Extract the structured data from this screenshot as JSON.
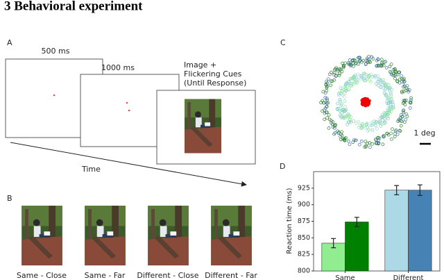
{
  "heading": "3   Behavioral experiment",
  "panel_a": {
    "label": "A",
    "screens": [
      {
        "caption": "500 ms"
      },
      {
        "caption": "1000 ms"
      },
      {
        "caption_lines": [
          "Image +",
          "Flickering Cues",
          "(Until Response)"
        ]
      }
    ],
    "axis_label": "Time"
  },
  "panel_b": {
    "label": "B",
    "conditions": [
      {
        "caption": "Same - Close",
        "color": "#90e890"
      },
      {
        "caption": "Same - Far",
        "color": "#2e8b2e"
      },
      {
        "caption": "Different - Close",
        "color": "#a8d8ea"
      },
      {
        "caption": "Different - Far",
        "color": "#4a86c0"
      }
    ]
  },
  "panel_c": {
    "label": "C",
    "scale_label": "1 deg"
  },
  "panel_d": {
    "label": "D",
    "chart": {
      "type": "bar",
      "y_label": "Reaction time (ms)",
      "categories": [
        "Same",
        "Different"
      ],
      "series": [
        {
          "color": "#90ee90",
          "values": [
            842,
            922
          ],
          "errors": [
            7,
            7
          ]
        },
        {
          "color": "#008000",
          "values": [
            874,
            922
          ],
          "errors": [
            7,
            8
          ]
        }
      ],
      "series_colors_different": [
        "#add8e6",
        "#4682b4"
      ],
      "ylim": [
        800,
        950
      ],
      "yticks": [
        800,
        825,
        850,
        875,
        900,
        925
      ]
    }
  }
}
